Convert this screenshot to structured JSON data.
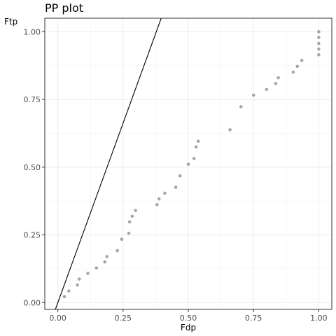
{
  "chart_data": {
    "type": "scatter",
    "title": "PP plot",
    "xlabel": "Fdp",
    "ylabel": "Ftp",
    "xlim": [
      -0.05,
      1.05
    ],
    "ylim": [
      -0.025,
      1.05
    ],
    "x_ticks": [
      0,
      0.25,
      0.5,
      0.75,
      1
    ],
    "y_ticks": [
      0,
      0.25,
      0.5,
      0.75,
      1
    ],
    "x_tick_labels": [
      "0.00",
      "0.25",
      "0.50",
      "0.75",
      "1.00"
    ],
    "y_tick_labels": [
      "0.00",
      "0.25",
      "0.50",
      "0.75",
      "1.00"
    ],
    "grid": true,
    "point_color": "#a6a6a6",
    "line_color": "#000000",
    "reference_line": {
      "intercept": 0,
      "slope": 2.65
    },
    "points": [
      [
        0.025,
        0.022
      ],
      [
        0.042,
        0.043
      ],
      [
        0.075,
        0.065
      ],
      [
        0.082,
        0.087
      ],
      [
        0.115,
        0.108
      ],
      [
        0.148,
        0.128
      ],
      [
        0.18,
        0.15
      ],
      [
        0.188,
        0.17
      ],
      [
        0.228,
        0.192
      ],
      [
        0.245,
        0.234
      ],
      [
        0.272,
        0.256
      ],
      [
        0.275,
        0.298
      ],
      [
        0.285,
        0.319
      ],
      [
        0.298,
        0.34
      ],
      [
        0.38,
        0.362
      ],
      [
        0.388,
        0.383
      ],
      [
        0.41,
        0.404
      ],
      [
        0.452,
        0.426
      ],
      [
        0.468,
        0.468
      ],
      [
        0.5,
        0.511
      ],
      [
        0.522,
        0.532
      ],
      [
        0.53,
        0.575
      ],
      [
        0.538,
        0.596
      ],
      [
        0.66,
        0.638
      ],
      [
        0.702,
        0.723
      ],
      [
        0.75,
        0.766
      ],
      [
        0.8,
        0.787
      ],
      [
        0.835,
        0.809
      ],
      [
        0.845,
        0.83
      ],
      [
        0.902,
        0.851
      ],
      [
        0.918,
        0.872
      ],
      [
        0.935,
        0.894
      ],
      [
        1.0,
        0.915
      ],
      [
        1.0,
        0.936
      ],
      [
        1.0,
        0.957
      ],
      [
        1.0,
        0.979
      ],
      [
        1.0,
        1.0
      ]
    ]
  }
}
